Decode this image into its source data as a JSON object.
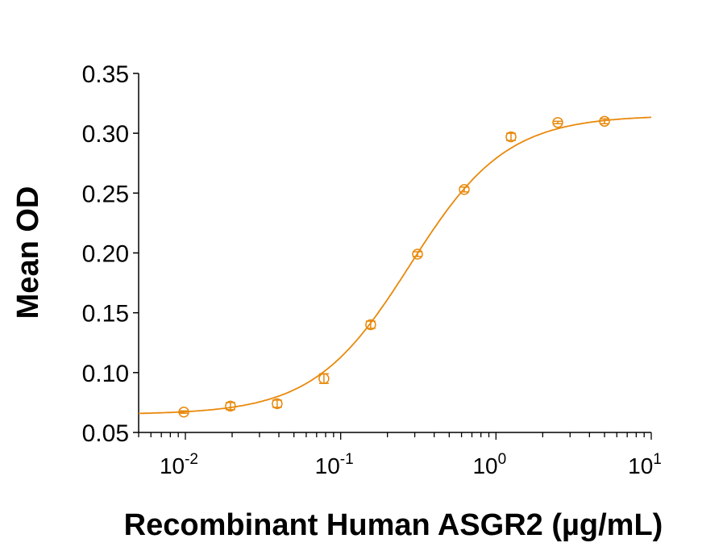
{
  "chart_data": {
    "type": "scatter",
    "title": "",
    "xlabel": "Recombinant Human ASGR2 (µg/mL)",
    "ylabel": "Mean OD",
    "xscale": "log",
    "xlim": [
      0.005,
      10
    ],
    "ylim": [
      0.05,
      0.35
    ],
    "grid": false,
    "x_ticks": [
      {
        "base": "10",
        "exp": "-2",
        "value": 0.01
      },
      {
        "base": "10",
        "exp": "-1",
        "value": 0.1
      },
      {
        "base": "10",
        "exp": "0",
        "value": 1
      },
      {
        "base": "10",
        "exp": "1",
        "value": 10
      }
    ],
    "y_ticks": [
      "0.05",
      "0.10",
      "0.15",
      "0.20",
      "0.25",
      "0.30",
      "0.35"
    ],
    "color": "#E8890C",
    "series": [
      {
        "name": "Mean OD",
        "x": [
          0.00977,
          0.0195,
          0.039,
          0.078,
          0.156,
          0.3125,
          0.625,
          1.25,
          2.5,
          5
        ],
        "y": [
          0.067,
          0.072,
          0.074,
          0.095,
          0.14,
          0.199,
          0.253,
          0.297,
          0.309,
          0.31
        ],
        "err": [
          0.001,
          0.003,
          0.003,
          0.004,
          0.003,
          0.002,
          0.002,
          0.003,
          0.001,
          0.002
        ]
      }
    ],
    "fit": {
      "model": "4PL",
      "bottom": 0.065,
      "top": 0.315,
      "ec50": 0.28,
      "hill": 1.4
    }
  }
}
